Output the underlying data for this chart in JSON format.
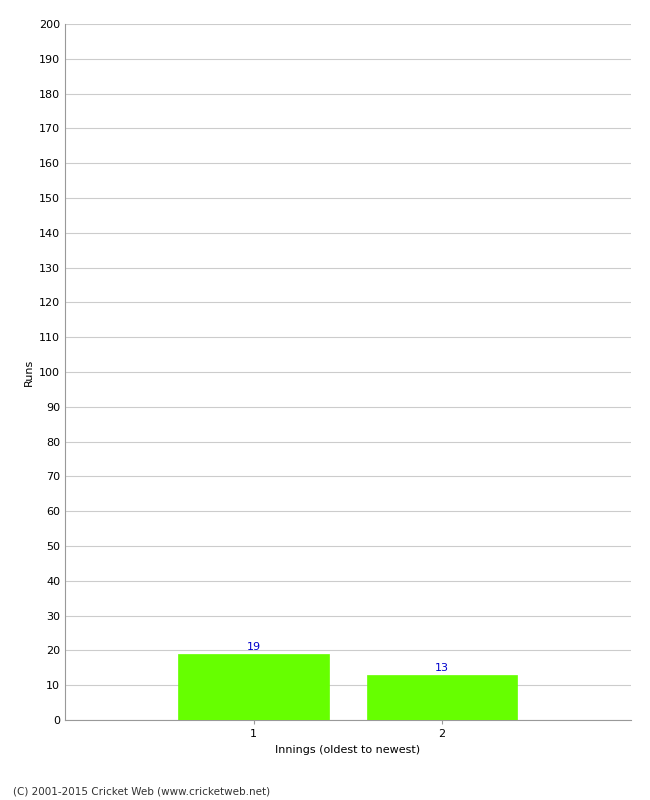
{
  "categories": [
    "1",
    "2"
  ],
  "values": [
    19,
    13
  ],
  "bar_color": "#66ff00",
  "bar_edge_color": "#66ff00",
  "ylabel": "Runs",
  "xlabel": "Innings (oldest to newest)",
  "ylim": [
    0,
    200
  ],
  "yticks": [
    0,
    10,
    20,
    30,
    40,
    50,
    60,
    70,
    80,
    90,
    100,
    110,
    120,
    130,
    140,
    150,
    160,
    170,
    180,
    190,
    200
  ],
  "label_color": "#0000cc",
  "label_fontsize": 8,
  "footer": "(C) 2001-2015 Cricket Web (www.cricketweb.net)",
  "background_color": "#ffffff",
  "grid_color": "#cccccc",
  "tick_label_fontsize": 8,
  "axis_label_fontsize": 8,
  "bar_width": 0.8,
  "xlim": [
    0,
    3
  ]
}
